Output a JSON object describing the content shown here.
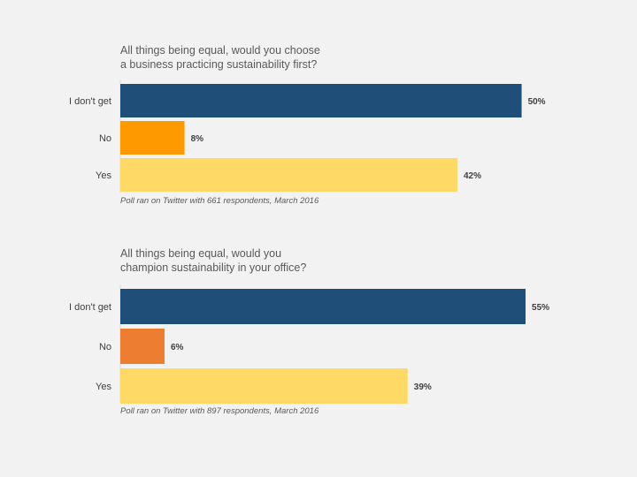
{
  "chart_data": [
    {
      "type": "bar",
      "orientation": "horizontal",
      "title": [
        "All things being equal, would you choose",
        "a business practicing sustainability first?"
      ],
      "categories": [
        "I don't get",
        "No",
        "Yes"
      ],
      "values": [
        50,
        8,
        42
      ],
      "value_labels": [
        "50%",
        "8%",
        "42%"
      ],
      "colors": [
        "#1f4e79",
        "#ff9900",
        "#ffd966"
      ],
      "xlim": [
        0,
        56
      ],
      "grid": false,
      "legend": "none",
      "note": "Poll ran on Twitter with 661 respondents, March 2016"
    },
    {
      "type": "bar",
      "orientation": "horizontal",
      "title": [
        "All things being equal, would you",
        "champion sustainability in your office?"
      ],
      "categories": [
        "I don't get",
        "No",
        "Yes"
      ],
      "values": [
        55,
        6,
        39
      ],
      "value_labels": [
        "55%",
        "6%",
        "39%"
      ],
      "colors": [
        "#1f4e79",
        "#ed7d31",
        "#ffd966"
      ],
      "xlim": [
        0,
        61
      ],
      "grid": false,
      "legend": "none",
      "note": "Poll ran on Twitter with 897 respondents, March 2016"
    }
  ]
}
